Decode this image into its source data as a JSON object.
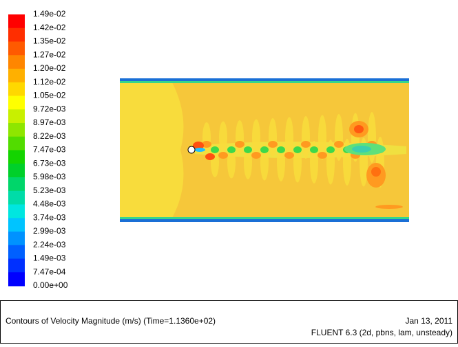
{
  "colorbar": {
    "labels": [
      "1.49e-02",
      "1.42e-02",
      "1.35e-02",
      "1.27e-02",
      "1.20e-02",
      "1.12e-02",
      "1.05e-02",
      "9.72e-03",
      "8.97e-03",
      "8.22e-03",
      "7.47e-03",
      "6.73e-03",
      "5.98e-03",
      "5.23e-03",
      "4.48e-03",
      "3.74e-03",
      "2.99e-03",
      "2.24e-03",
      "1.49e-03",
      "7.47e-04",
      "0.00e+00"
    ],
    "colors": [
      "#ff0000",
      "#ff2e00",
      "#ff5a00",
      "#ff8600",
      "#ffb000",
      "#ffd800",
      "#ffff00",
      "#c8f000",
      "#8ee600",
      "#52dc00",
      "#14d400",
      "#00d02a",
      "#00d66a",
      "#00dca8",
      "#00e6e0",
      "#00c4ff",
      "#0092ff",
      "#0060ff",
      "#0030ff",
      "#0000ff"
    ]
  },
  "caption": {
    "title": "Contours of Velocity Magnitude (m/s)  (Time=1.1360e+02)",
    "date": "Jan 13, 2011",
    "solver": "FLUENT 6.3 (2d, pbns, lam, unsteady)"
  }
}
